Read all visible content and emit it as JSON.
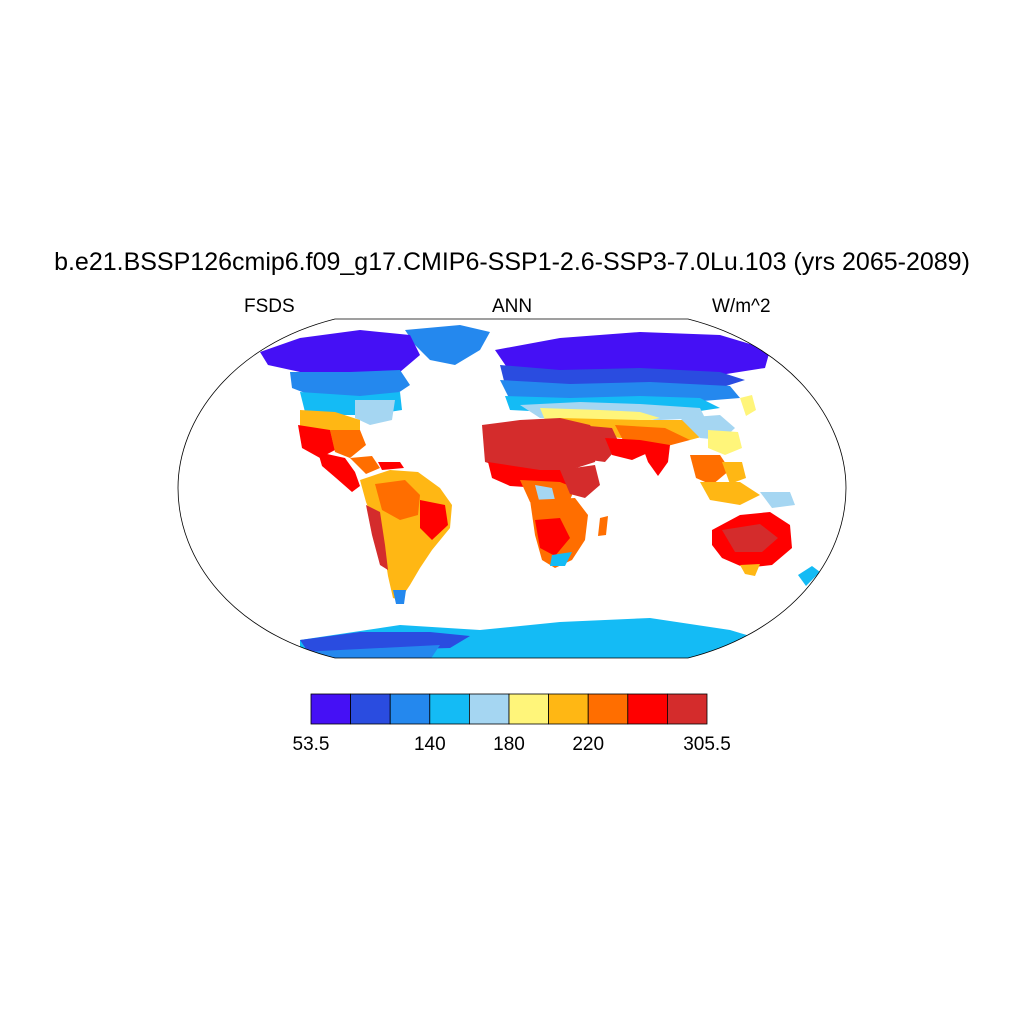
{
  "title": "b.e21.BSSP126cmip6.f09_g17.CMIP6-SSP1-2.6-SSP3-7.0Lu.103 (yrs 2065-2089)",
  "variable": "FSDS",
  "season": "ANN",
  "units": "W/m^2",
  "colorbar": {
    "colors": [
      "#4510F5",
      "#2A4CE0",
      "#2488EE",
      "#14BBF5",
      "#A5D6F2",
      "#FFF57A",
      "#FFB714",
      "#FF6E00",
      "#FF0000",
      "#D42C2C"
    ],
    "tick_labels": [
      "53.5",
      "140",
      "180",
      "220",
      "305.5"
    ]
  }
}
